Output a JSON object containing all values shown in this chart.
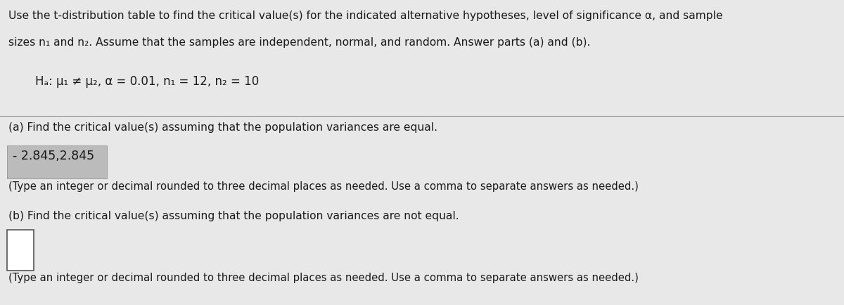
{
  "background_color": "#e8e8e8",
  "fig_width": 12.0,
  "fig_height": 4.35,
  "title_line1": "Use the t-distribution table to find the critical value(s) for the indicated alternative hypotheses, level of significance α, and sample",
  "title_line2": "sizes n₁ and n₂. Assume that the samples are independent, normal, and random. Answer parts (a) and (b).",
  "hypothesis_line": "Hₐ: μ₁ ≠ μ₂, α = 0.01, n₁ = 12, n₂ = 10",
  "part_a_label": "(a) Find the critical value(s) assuming that the population variances are equal.",
  "part_a_answer": "- 2.845,2.845",
  "part_a_note": "(Type an integer or decimal rounded to three decimal places as needed. Use a comma to separate answers as needed.)",
  "part_b_label": "(b) Find the critical value(s) assuming that the population variances are not equal.",
  "part_b_note": "(Type an integer or decimal rounded to three decimal places as needed. Use a comma to separate answers as needed.)",
  "answer_box_color": "#ffffff",
  "answer_highlight_color": "#bbbbbb",
  "text_color": "#1a1a1a",
  "divider_color": "#999999",
  "font_size_body": 11.2,
  "font_size_hyp": 12.0,
  "font_size_answer": 12.5
}
